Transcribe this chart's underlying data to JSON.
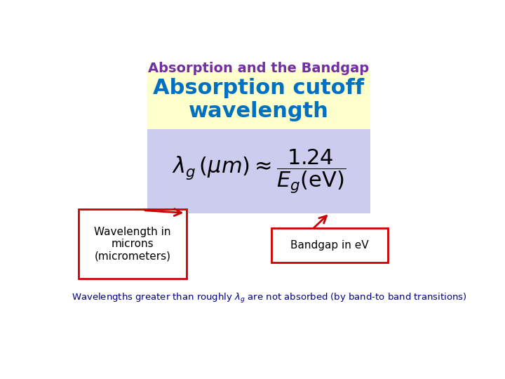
{
  "title": "Absorption and the Bandgap",
  "title_color": "#7030A0",
  "title_fontsize": 14,
  "subtitle": "Absorption cutoff\nwavelength",
  "subtitle_color": "#0070C0",
  "subtitle_fontsize": 22,
  "subtitle_bg": "#FFFFCC",
  "formula_bg": "#CCCCEE",
  "label_left": "Wavelength in\nmicrons\n(micrometers)",
  "label_right": "Bandgap in eV",
  "label_color": "#000000",
  "label_border_color": "#CC0000",
  "arrow_color": "#CC0000",
  "bottom_text_color": "#000080",
  "bottom_text": "Wavelengths greater than roughly $\\lambda_g$ are not absorbed (by band-to band transitions)",
  "background_color": "#FFFFFF"
}
